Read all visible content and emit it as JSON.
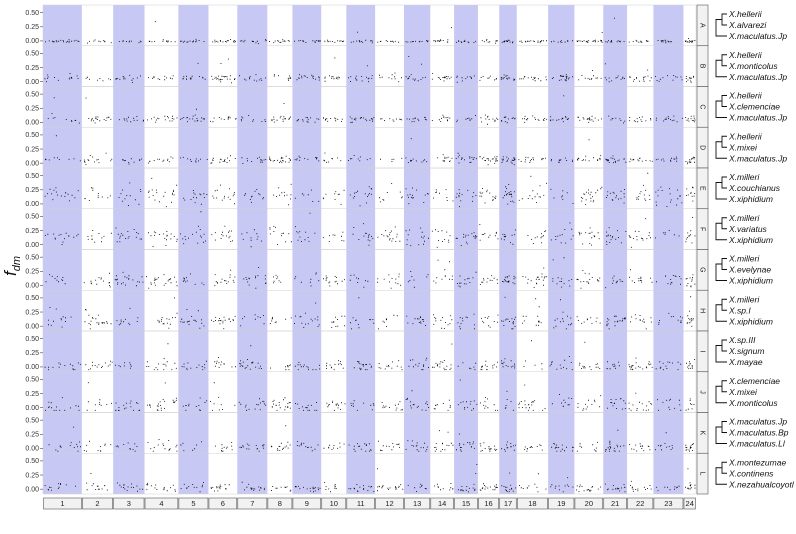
{
  "chart_data": {
    "type": "scatter",
    "ylabel_main": "f",
    "ylabel_sub": "dm",
    "xlabel": "",
    "title": "",
    "ylim": [
      -0.05,
      0.6
    ],
    "yticks": [
      "0.50",
      "0.25",
      "0.00"
    ],
    "chromosomes": [
      "1",
      "2",
      "3",
      "4",
      "5",
      "6",
      "7",
      "8",
      "9",
      "10",
      "11",
      "12",
      "13",
      "14",
      "15",
      "16",
      "17",
      "18",
      "19",
      "20",
      "21",
      "22",
      "23",
      "24"
    ],
    "chromosome_relative_widths": [
      1.55,
      1.25,
      1.25,
      1.35,
      1.2,
      1.15,
      1.2,
      1.0,
      1.15,
      1.0,
      1.15,
      1.15,
      1.05,
      0.95,
      0.95,
      0.85,
      0.7,
      1.25,
      1.05,
      1.15,
      0.95,
      1.05,
      1.2,
      0.5
    ],
    "shading": {
      "shaded_color": "#c8c8f4",
      "pattern": "odd chromosomes shaded"
    },
    "point_color": "#000000",
    "panels": [
      {
        "id": "A",
        "taxa": [
          "X.hellerii",
          "X.alvarezi",
          "X.maculatus.Jp"
        ],
        "baseline": 0.0,
        "noise": 0.012
      },
      {
        "id": "B",
        "taxa": [
          "X.hellerii",
          "X.monticolus",
          "X.maculatus.Jp"
        ],
        "baseline": 0.07,
        "noise": 0.03
      },
      {
        "id": "C",
        "taxa": [
          "X.hellerii",
          "X.clemenciae",
          "X.maculatus.Jp"
        ],
        "baseline": 0.07,
        "noise": 0.03
      },
      {
        "id": "D",
        "taxa": [
          "X.hellerii",
          "X.mixei",
          "X.maculatus.Jp"
        ],
        "baseline": 0.07,
        "noise": 0.03
      },
      {
        "id": "E",
        "taxa": [
          "X.milleri",
          "X.couchianus",
          "X.xiphidium"
        ],
        "baseline": 0.15,
        "noise": 0.08
      },
      {
        "id": "F",
        "taxa": [
          "X.milleri",
          "X.variatus",
          "X.xiphidium"
        ],
        "baseline": 0.15,
        "noise": 0.08
      },
      {
        "id": "G",
        "taxa": [
          "X.milleri",
          "X.evelynae",
          "X.xiphidium"
        ],
        "baseline": 0.1,
        "noise": 0.06
      },
      {
        "id": "H",
        "taxa": [
          "X.milleri",
          "X.sp.I",
          "X.xiphidium"
        ],
        "baseline": 0.1,
        "noise": 0.06
      },
      {
        "id": "I",
        "taxa": [
          "X.sp.III",
          "X.signum",
          "X.mayae"
        ],
        "baseline": 0.03,
        "noise": 0.05
      },
      {
        "id": "J",
        "taxa": [
          "X.clemenciae",
          "X.mixei",
          "X.monticolus"
        ],
        "baseline": 0.05,
        "noise": 0.07
      },
      {
        "id": "K",
        "taxa": [
          "X.maculatus.Jp",
          "X.maculatus.Bp",
          "X.maculatus.Ll"
        ],
        "baseline": 0.03,
        "noise": 0.05
      },
      {
        "id": "L",
        "taxa": [
          "X.montezumae",
          "X.continens",
          "X.nezahualcoyotl"
        ],
        "baseline": 0.03,
        "noise": 0.04
      }
    ]
  }
}
